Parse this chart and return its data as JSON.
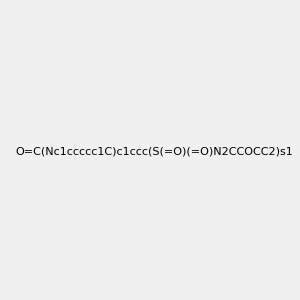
{
  "smiles": "O=C(Nc1ccccc1C)c1ccc(S(=O)(=O)N2CCOCC2)s1",
  "image_size": 300,
  "background_color": "#f0f0f0",
  "bond_color": "#000000",
  "atom_colors": {
    "S": "#cccc00",
    "N": "#0000ff",
    "O": "#ff0000",
    "H": "#808080"
  },
  "title": ""
}
